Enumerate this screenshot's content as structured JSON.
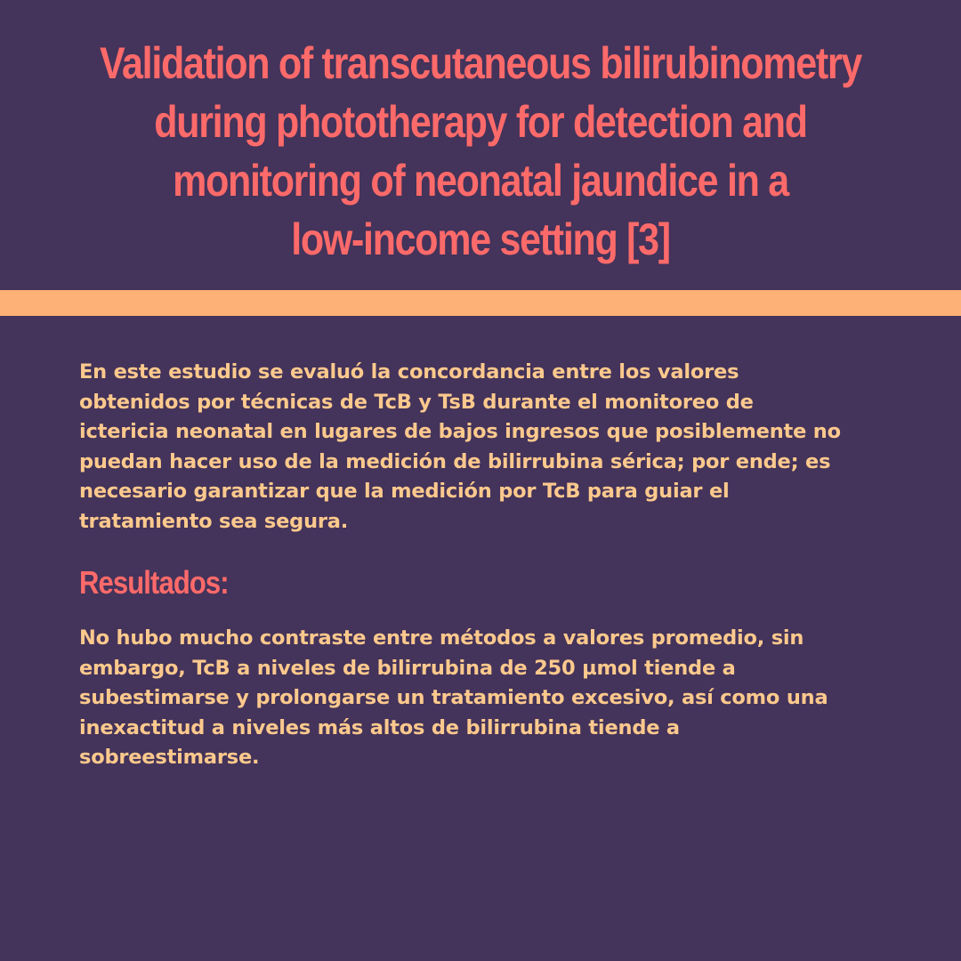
{
  "header": {
    "title_lines": [
      "Validation of transcutaneous bilirubinometry",
      "during phototherapy for detection and",
      "monitoring of neonatal jaundice in a",
      "low-income setting [3]"
    ]
  },
  "intro": {
    "lines": [
      "En este estudio se evaluó la concordancia entre los valores",
      "obtenidos por técnicas de TcB y TsB durante el monitoreo de",
      "ictericia neonatal en lugares de bajos ingresos que posiblemente no",
      "puedan hacer uso de la medición de bilirrubina sérica; por ende; es",
      "necesario garantizar que la medición por TcB para guiar el",
      "tratamiento sea segura."
    ]
  },
  "results": {
    "heading": "Resultados:",
    "lines": [
      "No hubo mucho contraste entre métodos a valores promedio, sin",
      "embargo, TcB a niveles de bilirrubina de 250 µmol tiende a",
      "subestimarse y prolongarse un tratamiento excesivo, así como una",
      "inexactitud a niveles más altos de bilirrubina tiende a",
      "sobreestimarse."
    ]
  },
  "colors": {
    "background": "#44335a",
    "title": "#fd6a6a",
    "divider": "#fdb176",
    "body_text": "#fcc98d"
  }
}
